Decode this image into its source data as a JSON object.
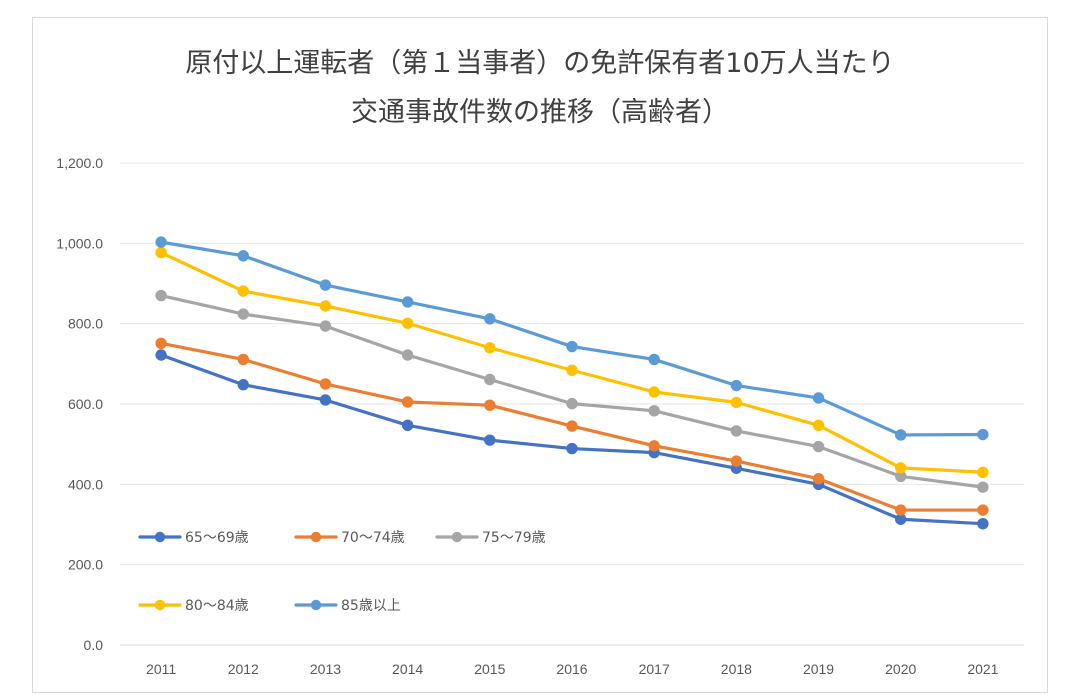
{
  "chart_data": {
    "type": "line",
    "title_lines": [
      "原付以上運転者（第１当事者）の免許保有者10万人当たり",
      "交通事故件数の推移（高齢者）"
    ],
    "xlabel": "",
    "ylabel": "",
    "categories": [
      "2011",
      "2012",
      "2013",
      "2014",
      "2015",
      "2016",
      "2017",
      "2018",
      "2019",
      "2020",
      "2021"
    ],
    "ylim": [
      0,
      1200
    ],
    "yticks": [
      0,
      200,
      400,
      600,
      800,
      1000,
      1200
    ],
    "ytick_labels": [
      "0.0",
      "200.0",
      "400.0",
      "600.0",
      "800.0",
      "1,000.0",
      "1,200.0"
    ],
    "grid": true,
    "legend_position": "bottom-left",
    "series": [
      {
        "name": "65～69歳",
        "color": "#4472c4",
        "values": [
          722,
          648,
          610,
          547,
          510,
          489,
          479,
          440,
          400,
          313,
          302
        ]
      },
      {
        "name": "70～74歳",
        "color": "#ed7d31",
        "values": [
          751,
          711,
          650,
          605,
          597,
          545,
          496,
          458,
          414,
          336,
          336
        ]
      },
      {
        "name": "75～79歳",
        "color": "#a5a5a5",
        "values": [
          870,
          824,
          794,
          722,
          661,
          601,
          583,
          533,
          494,
          420,
          393
        ]
      },
      {
        "name": "80～84歳",
        "color": "#ffc000",
        "values": [
          977,
          881,
          844,
          801,
          740,
          684,
          630,
          604,
          547,
          441,
          430
        ]
      },
      {
        "name": "85歳以上",
        "color": "#5b9bd5",
        "values": [
          1003,
          969,
          896,
          854,
          812,
          743,
          711,
          646,
          615,
          523,
          524
        ]
      }
    ]
  }
}
